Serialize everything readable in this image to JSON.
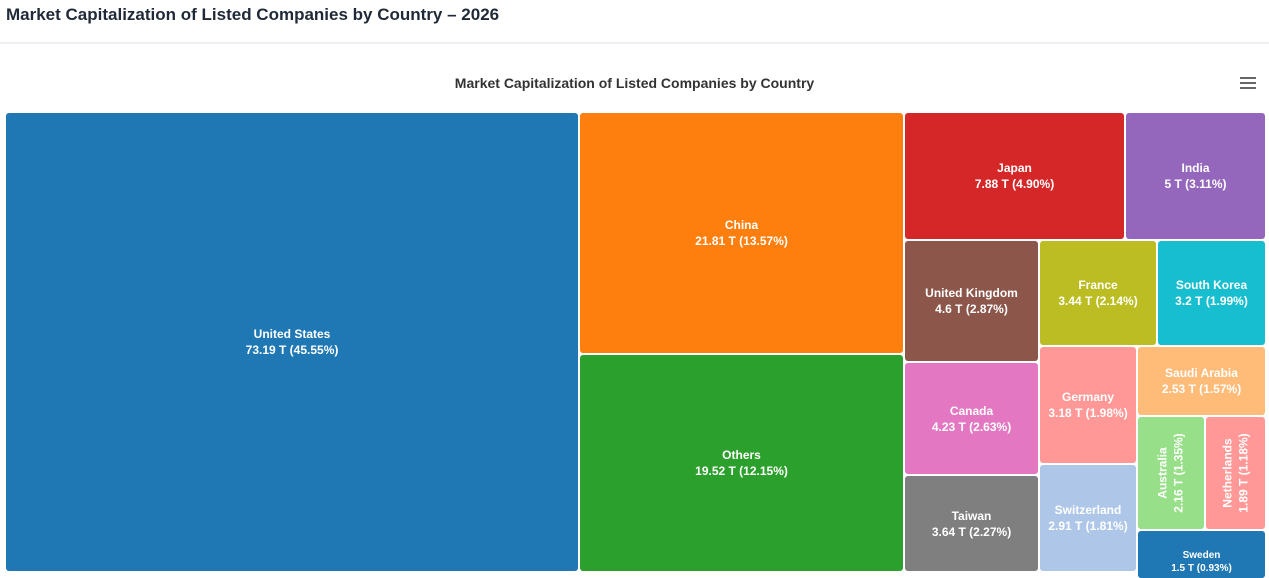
{
  "header": {
    "title": "Market Capitalization of Listed Companies by Country – 2026"
  },
  "chart_data": {
    "type": "treemap",
    "title": "Market Capitalization of Listed Companies by Country",
    "unit": "T",
    "items": [
      {
        "name": "United States",
        "value": 73.19,
        "value_label": "73.19 T (45.55%)",
        "color": "#1f77b4"
      },
      {
        "name": "China",
        "value": 21.81,
        "value_label": "21.81 T (13.57%)",
        "color": "#ff7f0e"
      },
      {
        "name": "Others",
        "value": 19.52,
        "value_label": "19.52 T (12.15%)",
        "color": "#2ca02c"
      },
      {
        "name": "Japan",
        "value": 7.88,
        "value_label": "7.88 T (4.90%)",
        "color": "#d62728"
      },
      {
        "name": "India",
        "value": 5,
        "value_label": "5 T (3.11%)",
        "color": "#9467bd"
      },
      {
        "name": "United Kingdom",
        "value": 4.6,
        "value_label": "4.6 T (2.87%)",
        "color": "#8c564b"
      },
      {
        "name": "France",
        "value": 3.44,
        "value_label": "3.44 T (2.14%)",
        "color": "#bcbd22"
      },
      {
        "name": "South Korea",
        "value": 3.2,
        "value_label": "3.2 T (1.99%)",
        "color": "#17becf"
      },
      {
        "name": "Canada",
        "value": 4.23,
        "value_label": "4.23 T (2.63%)",
        "color": "#e377c2"
      },
      {
        "name": "Taiwan",
        "value": 3.64,
        "value_label": "3.64 T (2.27%)",
        "color": "#7f7f7f"
      },
      {
        "name": "Germany",
        "value": 3.18,
        "value_label": "3.18 T (1.98%)",
        "color": "#ff9896"
      },
      {
        "name": "Switzerland",
        "value": 2.91,
        "value_label": "2.91 T (1.81%)",
        "color": "#aec7e8"
      },
      {
        "name": "Saudi Arabia",
        "value": 2.53,
        "value_label": "2.53 T (1.57%)",
        "color": "#ffbb78"
      },
      {
        "name": "Australia",
        "value": 2.16,
        "value_label": "2.16 T (1.35%)",
        "color": "#98df8a"
      },
      {
        "name": "Netherlands",
        "value": 1.89,
        "value_label": "1.89 T (1.18%)",
        "color": "#ff9896"
      },
      {
        "name": "Sweden",
        "value": 1.5,
        "value_label": "1.5 T (0.93%)",
        "color": "#1f77b4"
      }
    ]
  },
  "toolbar": {
    "menu_icon": "hamburger-menu-icon"
  }
}
